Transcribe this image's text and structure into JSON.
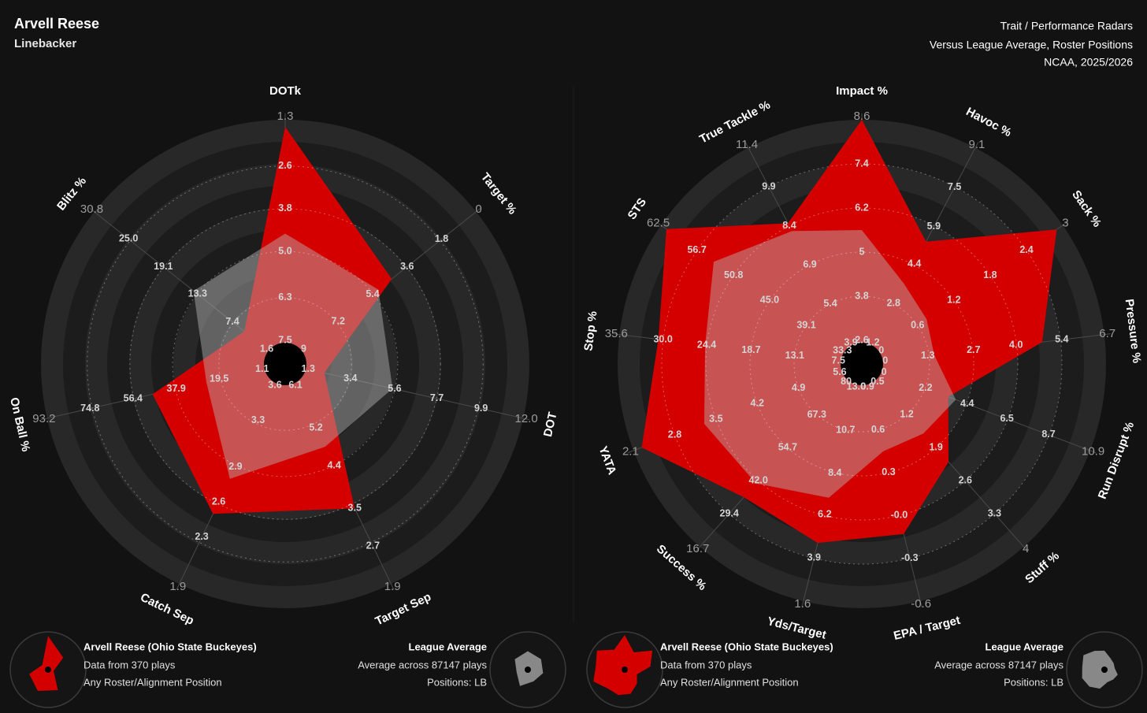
{
  "header": {
    "name": "Arvell Reese",
    "position": "Linebacker",
    "title": "Trait / Performance Radars",
    "subtitle": "Versus League Average, Roster Positions",
    "season": "NCAA, 2025/2026"
  },
  "chart_data": [
    {
      "type": "radar",
      "axes": [
        {
          "name": "DOTk",
          "lim": [
            7.5,
            1.3
          ],
          "ticks": [
            7.5,
            6.3,
            {
              "value": 5,
              "label": "5.0"
            },
            3.8,
            2.6,
            1.3
          ]
        },
        {
          "name": "Target %",
          "lim": [
            9,
            0
          ],
          "ticks": [
            9,
            7.2,
            5.4,
            3.6,
            1.8,
            0
          ]
        },
        {
          "name": "DOT",
          "lim": [
            1.3,
            12
          ],
          "ticks": [
            1.3,
            3.4,
            5.6,
            7.7,
            9.9,
            {
              "value": 12,
              "label": "12.0"
            }
          ]
        },
        {
          "name": "Target Sep",
          "lim": [
            6.1,
            1.9
          ],
          "ticks": [
            6.1,
            5.2,
            4.4,
            3.5,
            2.7,
            1.9
          ]
        },
        {
          "name": "Catch Sep",
          "lim": [
            3.6,
            1.9
          ],
          "ticks": [
            3.6,
            3.3,
            2.9,
            2.6,
            2.3,
            1.9
          ]
        },
        {
          "name": "On Ball %",
          "lim": [
            1.1,
            93.2
          ],
          "ticks": [
            1.1,
            19.5,
            37.9,
            56.4,
            74.8,
            93.2
          ]
        },
        {
          "name": "Blitz %",
          "lim": [
            1.6,
            30.8
          ],
          "ticks": [
            1.6,
            7.4,
            13.3,
            19.1,
            {
              "value": 25,
              "label": "25.0"
            },
            30.8
          ]
        }
      ],
      "series": [
        {
          "name": "Arvell Reese (Ohio State Buckeyes)",
          "color": "#d40000",
          "notes": [
            "Data from 370 plays",
            "Any Roster/Alignment Position"
          ],
          "values": [
            1.5,
            4.4,
            2.1,
            3.5,
            2.5,
            48,
            5.4
          ]
        },
        {
          "name": "League Average",
          "color": "#b8b8b8",
          "notes": [
            "Average across 87147 plays",
            "Positions: LB"
          ],
          "values": [
            4.5,
            5.1,
            5.5,
            4.8,
            2.8,
            25,
            14
          ]
        }
      ]
    },
    {
      "type": "radar",
      "axes": [
        {
          "name": "Impact %",
          "lim": [
            2.6,
            8.6
          ],
          "ticks": [
            2.6,
            3.8,
            5,
            6.2,
            7.4,
            8.6
          ]
        },
        {
          "name": "Havoc %",
          "lim": [
            1.2,
            9.1
          ],
          "ticks": [
            1.2,
            2.8,
            4.4,
            5.9,
            7.5,
            9.1
          ]
        },
        {
          "name": "Sack %",
          "lim": [
            0,
            3
          ],
          "ticks": [
            0,
            0.6,
            1.2,
            1.8,
            2.4,
            3
          ]
        },
        {
          "name": "Pressure %",
          "lim": [
            0,
            6.7
          ],
          "ticks": [
            0,
            1.3,
            2.7,
            {
              "value": 4,
              "label": "4.0"
            },
            5.4,
            6.7
          ]
        },
        {
          "name": "Run Disrupt %",
          "lim": [
            0,
            10.9
          ],
          "ticks": [
            0,
            2.2,
            4.4,
            6.5,
            8.7,
            10.9
          ]
        },
        {
          "name": "Stuff %",
          "lim": [
            0.5,
            4
          ],
          "ticks": [
            0.5,
            1.2,
            1.9,
            2.6,
            3.3,
            4
          ]
        },
        {
          "name": "EPA / Target",
          "lim": [
            0.9,
            -0.6
          ],
          "ticks": [
            0.9,
            0.6,
            0.3,
            {
              "value": 0,
              "label": "-0.0"
            },
            -0.3,
            -0.6
          ]
        },
        {
          "name": "Yds/Target",
          "lim": [
            13,
            1.6
          ],
          "ticks": [
            {
              "value": 13,
              "label": "13.0"
            },
            10.7,
            8.4,
            6.2,
            3.9,
            1.6
          ]
        },
        {
          "name": "Success %",
          "lim": [
            80,
            16.7
          ],
          "ticks": [
            80,
            67.3,
            54.7,
            {
              "value": 42,
              "label": "42.0"
            },
            29.4,
            16.7
          ]
        },
        {
          "name": "YATA",
          "lim": [
            5.6,
            2.1
          ],
          "ticks": [
            5.6,
            4.9,
            4.2,
            3.5,
            2.8,
            2.1
          ]
        },
        {
          "name": "Stop %",
          "lim": [
            7.5,
            35.6
          ],
          "ticks": [
            7.5,
            13.1,
            18.7,
            24.4,
            {
              "value": 30,
              "label": "30.0"
            },
            35.6
          ]
        },
        {
          "name": "STS",
          "lim": [
            33.3,
            62.5
          ],
          "ticks": [
            33.3,
            39.1,
            {
              "value": 45,
              "label": "45.0"
            },
            50.8,
            56.7,
            62.5
          ]
        },
        {
          "name": "True Tackle %",
          "lim": [
            3.9,
            11.4
          ],
          "ticks": [
            3.9,
            5.4,
            6.9,
            8.4,
            9.9,
            11.4
          ]
        }
      ],
      "series": [
        {
          "name": "Arvell Reese (Ohio State Buckeyes)",
          "color": "#d40000",
          "notes": [
            "Data from 370 plays",
            "Any Roster/Alignment Position"
          ],
          "values": [
            8.6,
            5.3,
            2.9,
            4.8,
            3.4,
            2.2,
            -0.13,
            4.7,
            35.7,
            2.24,
            30.6,
            61.6,
            8.5
          ]
        },
        {
          "name": "League Average",
          "color": "#b8b8b8",
          "notes": [
            "Average across 87147 plays",
            "Positions: LB"
          ],
          "values": [
            5.6,
            3.6,
            0.75,
            1.5,
            3.8,
            1.6,
            0.45,
            7.1,
            41,
            3.3,
            24.6,
            54,
            8.2
          ]
        }
      ]
    }
  ]
}
